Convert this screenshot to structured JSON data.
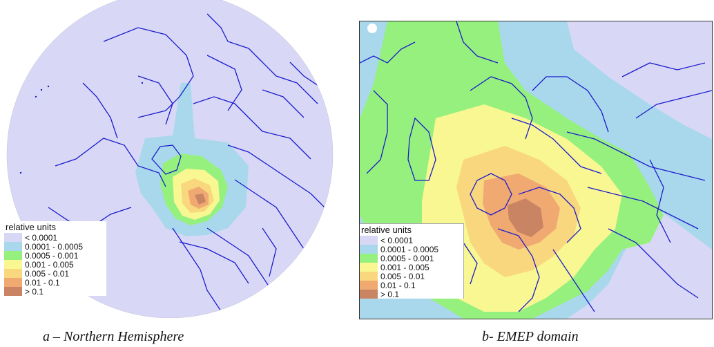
{
  "panels": [
    {
      "id": "a",
      "caption": "a – Northern Hemisphere"
    },
    {
      "id": "b",
      "caption": "b- EMEP domain"
    }
  ],
  "legend": {
    "title": "relative units",
    "entries": [
      {
        "label": "< 0.0001",
        "color": "#d8d8f6"
      },
      {
        "label": "0.0001 - 0.0005",
        "color": "#a9d8ec"
      },
      {
        "label": "0.0005 - 0.001",
        "color": "#96f07e"
      },
      {
        "label": "0.001 - 0.005",
        "color": "#f8f792"
      },
      {
        "label": "0.005 - 0.01",
        "color": "#f9d77e"
      },
      {
        "label": "0.01 - 0.1",
        "color": "#f0a971"
      },
      {
        "label": "> 0.1",
        "color": "#c98463"
      }
    ]
  },
  "colors": {
    "border_lines": "#1a1acc",
    "frame": "#333333"
  }
}
